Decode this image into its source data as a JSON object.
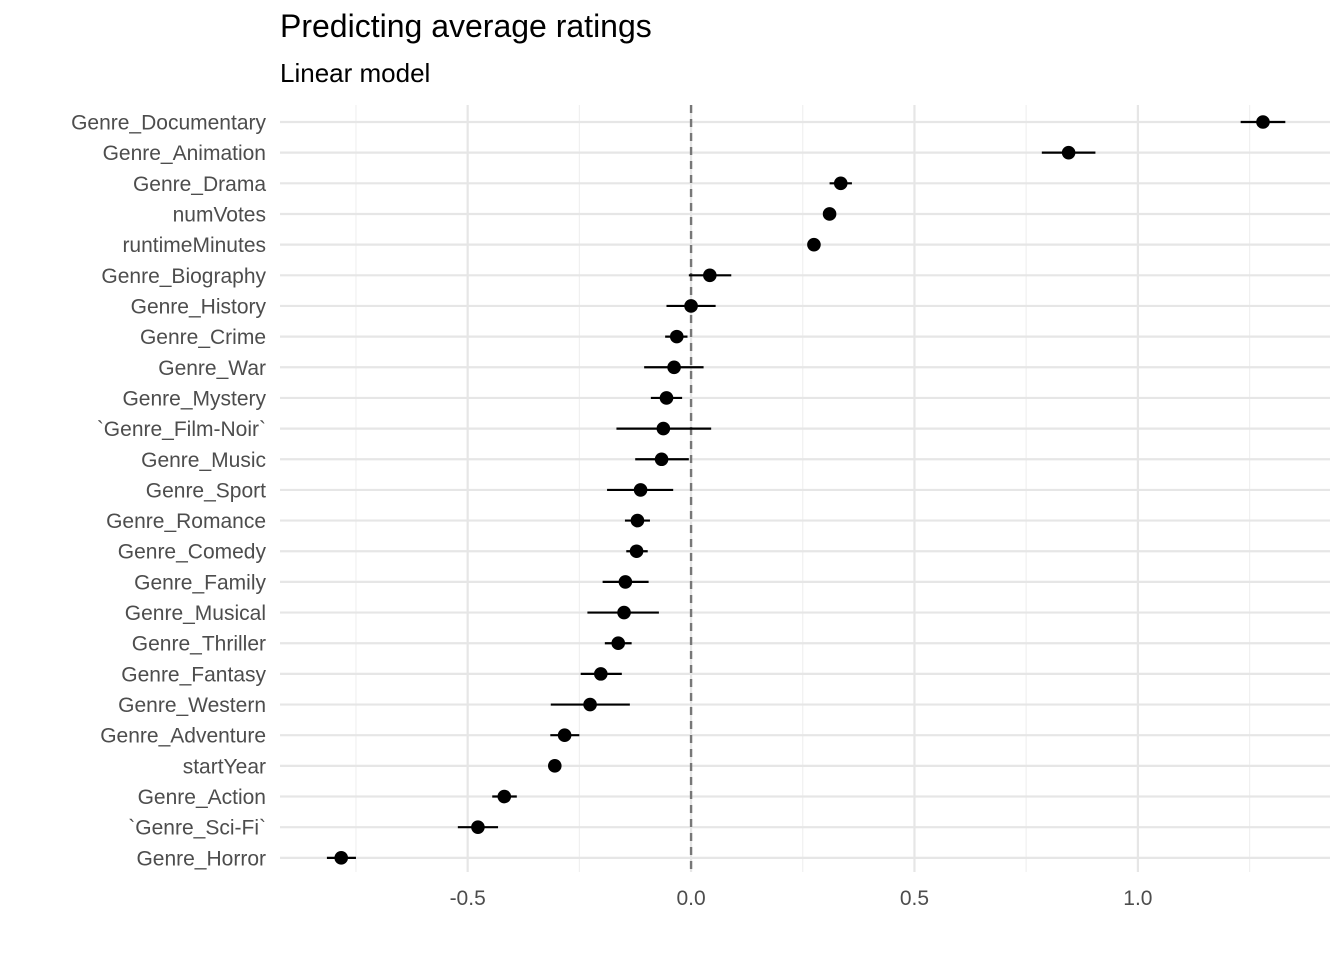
{
  "chart_data": {
    "type": "scatter",
    "title": "Predicting average ratings",
    "subtitle": "Linear model",
    "xlabel": "",
    "ylabel": "",
    "xlim": [
      -0.92,
      1.43
    ],
    "x_ticks": [
      -0.5,
      0.0,
      0.5,
      1.0
    ],
    "x_tick_labels": [
      "-0.5",
      "0.0",
      "0.5",
      "1.0"
    ],
    "reference_line": {
      "x": 0,
      "style": "dashed",
      "color": "#777777"
    },
    "grid": true,
    "legend": "none",
    "point_color": "#000000",
    "terms": [
      {
        "name": "Genre_Documentary",
        "estimate": 1.28,
        "low": 1.23,
        "high": 1.33
      },
      {
        "name": "Genre_Animation",
        "estimate": 0.845,
        "low": 0.785,
        "high": 0.905
      },
      {
        "name": "Genre_Drama",
        "estimate": 0.335,
        "low": 0.31,
        "high": 0.36
      },
      {
        "name": "numVotes",
        "estimate": 0.31,
        "low": 0.31,
        "high": 0.31
      },
      {
        "name": "runtimeMinutes",
        "estimate": 0.275,
        "low": 0.275,
        "high": 0.275
      },
      {
        "name": "Genre_Biography",
        "estimate": 0.042,
        "low": -0.005,
        "high": 0.09
      },
      {
        "name": "Genre_History",
        "estimate": 0.0,
        "low": -0.055,
        "high": 0.055
      },
      {
        "name": "Genre_Crime",
        "estimate": -0.032,
        "low": -0.058,
        "high": -0.008
      },
      {
        "name": "Genre_War",
        "estimate": -0.038,
        "low": -0.105,
        "high": 0.028
      },
      {
        "name": "Genre_Mystery",
        "estimate": -0.055,
        "low": -0.09,
        "high": -0.02
      },
      {
        "name": "`Genre_Film-Noir`",
        "estimate": -0.062,
        "low": -0.167,
        "high": 0.045
      },
      {
        "name": "Genre_Music",
        "estimate": -0.066,
        "low": -0.125,
        "high": -0.005
      },
      {
        "name": "Genre_Sport",
        "estimate": -0.113,
        "low": -0.188,
        "high": -0.04
      },
      {
        "name": "Genre_Romance",
        "estimate": -0.12,
        "low": -0.148,
        "high": -0.092
      },
      {
        "name": "Genre_Comedy",
        "estimate": -0.122,
        "low": -0.145,
        "high": -0.097
      },
      {
        "name": "Genre_Family",
        "estimate": -0.147,
        "low": -0.198,
        "high": -0.095
      },
      {
        "name": "Genre_Musical",
        "estimate": -0.15,
        "low": -0.232,
        "high": -0.072
      },
      {
        "name": "Genre_Thriller",
        "estimate": -0.163,
        "low": -0.193,
        "high": -0.133
      },
      {
        "name": "Genre_Fantasy",
        "estimate": -0.202,
        "low": -0.247,
        "high": -0.155
      },
      {
        "name": "Genre_Western",
        "estimate": -0.226,
        "low": -0.314,
        "high": -0.137
      },
      {
        "name": "Genre_Adventure",
        "estimate": -0.283,
        "low": -0.315,
        "high": -0.25
      },
      {
        "name": "startYear",
        "estimate": -0.305,
        "low": -0.305,
        "high": -0.305
      },
      {
        "name": "Genre_Action",
        "estimate": -0.418,
        "low": -0.445,
        "high": -0.39
      },
      {
        "name": "`Genre_Sci-Fi`",
        "estimate": -0.477,
        "low": -0.522,
        "high": -0.432
      },
      {
        "name": "Genre_Horror",
        "estimate": -0.783,
        "low": -0.815,
        "high": -0.75
      }
    ]
  }
}
